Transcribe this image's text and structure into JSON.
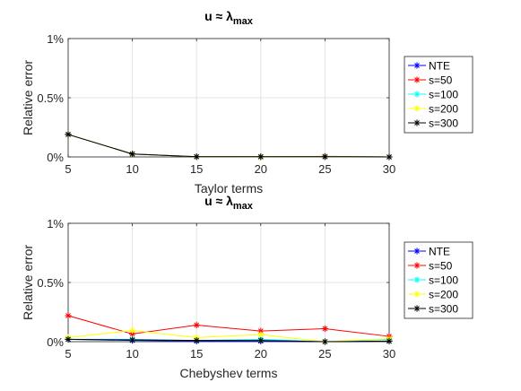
{
  "chart_data": [
    {
      "type": "line",
      "title_base": "u ≈ λ",
      "title_sub": "max",
      "xlabel": "Taylor terms",
      "ylabel": "Relative error",
      "x": [
        5,
        10,
        15,
        20,
        25,
        30
      ],
      "xlim": [
        5,
        30
      ],
      "ylim": [
        0,
        1
      ],
      "xticks": [
        5,
        10,
        15,
        20,
        25,
        30
      ],
      "yticks": [
        0,
        0.5,
        1
      ],
      "ytick_labels": [
        "0%",
        "0.5%",
        "1%"
      ],
      "grid": true,
      "legend_position": "right",
      "series": [
        {
          "name": "NTE",
          "color": "#0000ff",
          "values": [
            0.19,
            0.025,
            0.002,
            0.002,
            0.002,
            0.0
          ]
        },
        {
          "name": "s=50",
          "color": "#ff0000",
          "values": [
            0.19,
            0.025,
            0.002,
            0.0,
            0.005,
            0.0
          ]
        },
        {
          "name": "s=100",
          "color": "#00ffff",
          "values": [
            0.19,
            0.025,
            0.002,
            0.002,
            0.002,
            0.0
          ]
        },
        {
          "name": "s=200",
          "color": "#ffff00",
          "values": [
            0.19,
            0.025,
            0.002,
            0.002,
            0.002,
            0.0
          ]
        },
        {
          "name": "s=300",
          "color": "#000000",
          "values": [
            0.19,
            0.025,
            0.002,
            0.002,
            0.002,
            0.0
          ]
        }
      ]
    },
    {
      "type": "line",
      "title_base": "u ≈ λ",
      "title_sub": "max",
      "xlabel": "Chebyshev terms",
      "ylabel": "Relative error",
      "x": [
        5,
        10,
        15,
        20,
        25,
        30
      ],
      "xlim": [
        5,
        30
      ],
      "ylim": [
        0,
        1
      ],
      "xticks": [
        5,
        10,
        15,
        20,
        25,
        30
      ],
      "yticks": [
        0,
        0.5,
        1
      ],
      "ytick_labels": [
        "0%",
        "0.5%",
        "1%"
      ],
      "grid": true,
      "legend_position": "right",
      "series": [
        {
          "name": "NTE",
          "color": "#0000ff",
          "values": [
            0.02,
            0.01,
            0.005,
            0.005,
            0.0,
            0.005
          ]
        },
        {
          "name": "s=50",
          "color": "#ff0000",
          "values": [
            0.22,
            0.065,
            0.14,
            0.09,
            0.11,
            0.045
          ]
        },
        {
          "name": "s=100",
          "color": "#00ffff",
          "values": [
            0.02,
            0.02,
            0.01,
            0.02,
            0.0,
            0.02
          ]
        },
        {
          "name": "s=200",
          "color": "#ffff00",
          "values": [
            0.035,
            0.095,
            0.035,
            0.06,
            0.0,
            0.025
          ]
        },
        {
          "name": "s=300",
          "color": "#000000",
          "values": [
            0.02,
            0.015,
            0.01,
            0.01,
            0.0,
            0.005
          ]
        }
      ]
    }
  ]
}
